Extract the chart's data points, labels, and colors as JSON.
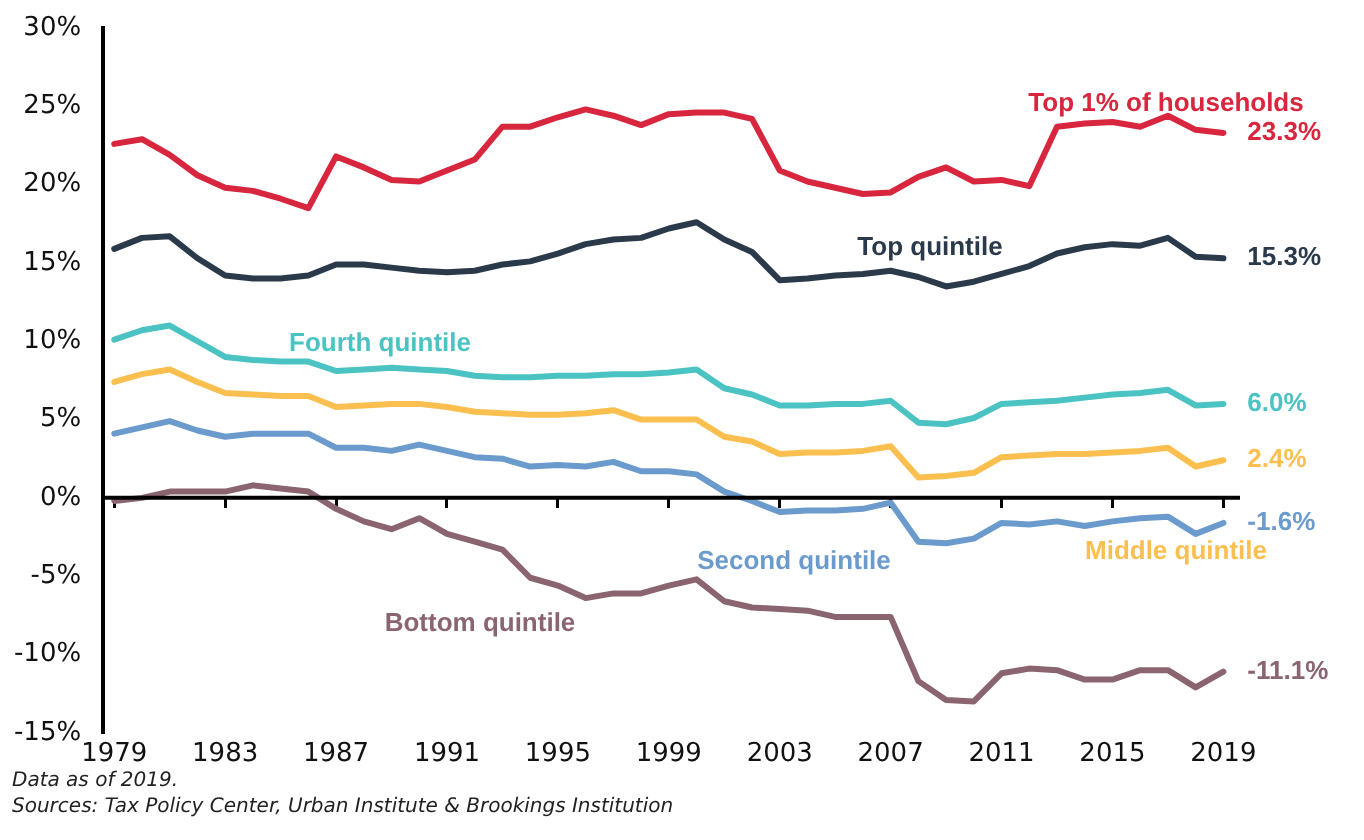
{
  "chart_data": {
    "type": "line",
    "x": [
      1979,
      1980,
      1981,
      1982,
      1983,
      1984,
      1985,
      1986,
      1987,
      1988,
      1989,
      1990,
      1991,
      1992,
      1993,
      1994,
      1995,
      1996,
      1997,
      1998,
      1999,
      2000,
      2001,
      2002,
      2003,
      2004,
      2005,
      2006,
      2007,
      2008,
      2009,
      2010,
      2011,
      2012,
      2013,
      2014,
      2015,
      2016,
      2017,
      2018,
      2019
    ],
    "series": [
      {
        "name": "Top 1% of households",
        "color": "#d7263d",
        "values": [
          22.6,
          22.9,
          21.9,
          20.6,
          19.8,
          19.6,
          19.1,
          18.5,
          21.8,
          21.1,
          20.3,
          20.2,
          20.9,
          21.6,
          23.7,
          23.7,
          24.3,
          24.8,
          24.4,
          23.8,
          24.5,
          24.6,
          24.6,
          24.2,
          20.9,
          20.2,
          19.8,
          19.4,
          19.5,
          20.5,
          21.1,
          20.2,
          20.3,
          19.9,
          23.7,
          23.9,
          24.0,
          23.7,
          24.4,
          23.5,
          23.3
        ],
        "value_labels": [
          null,
          null,
          null,
          null,
          null,
          null,
          null,
          null,
          null,
          null,
          null,
          null,
          null,
          null,
          null,
          null,
          null,
          null,
          null,
          null,
          null,
          null,
          null,
          null,
          null,
          null,
          null,
          null,
          null,
          null,
          null,
          null,
          null,
          null,
          null,
          null,
          null,
          null,
          null,
          null,
          "23.3%"
        ]
      },
      {
        "name": "Top quintile",
        "color": "#2b3a4a",
        "values": [
          15.9,
          16.6,
          16.7,
          15.3,
          14.2,
          14.0,
          14.0,
          14.2,
          14.9,
          14.9,
          14.7,
          14.5,
          14.4,
          14.5,
          14.9,
          15.1,
          15.6,
          16.2,
          16.5,
          16.6,
          17.2,
          17.6,
          16.5,
          15.7,
          13.9,
          14.0,
          14.2,
          14.3,
          14.5,
          14.1,
          13.5,
          13.8,
          14.3,
          14.8,
          15.6,
          16.0,
          16.2,
          16.1,
          16.6,
          15.4,
          15.3
        ],
        "value_labels": [
          null,
          null,
          null,
          null,
          null,
          null,
          null,
          null,
          null,
          null,
          null,
          null,
          null,
          null,
          null,
          null,
          null,
          null,
          null,
          null,
          null,
          null,
          null,
          null,
          null,
          null,
          null,
          null,
          null,
          null,
          null,
          null,
          null,
          null,
          null,
          null,
          null,
          null,
          null,
          null,
          "15.3%"
        ]
      },
      {
        "name": "Fourth quintile",
        "color": "#4cc3c3",
        "values": [
          10.1,
          10.7,
          11.0,
          10.0,
          9.0,
          8.8,
          8.7,
          8.7,
          8.1,
          8.2,
          8.3,
          8.2,
          8.1,
          7.8,
          7.7,
          7.7,
          7.8,
          7.8,
          7.9,
          7.9,
          8.0,
          8.2,
          7.0,
          6.6,
          5.9,
          5.9,
          6.0,
          6.0,
          6.2,
          4.8,
          4.7,
          5.1,
          6.0,
          6.1,
          6.2,
          6.4,
          6.6,
          6.7,
          6.9,
          5.9,
          6.0
        ],
        "value_labels": [
          null,
          null,
          null,
          null,
          null,
          null,
          null,
          null,
          null,
          null,
          null,
          null,
          null,
          null,
          null,
          null,
          null,
          null,
          null,
          null,
          null,
          null,
          null,
          null,
          null,
          null,
          null,
          null,
          null,
          null,
          null,
          null,
          null,
          null,
          null,
          null,
          null,
          null,
          null,
          null,
          "6.0%"
        ]
      },
      {
        "name": "Middle quintile",
        "color": "#fbbf4f",
        "values": [
          7.4,
          7.9,
          8.2,
          7.4,
          6.7,
          6.6,
          6.5,
          6.5,
          5.8,
          5.9,
          6.0,
          6.0,
          5.8,
          5.5,
          5.4,
          5.3,
          5.3,
          5.4,
          5.6,
          5.0,
          5.0,
          5.0,
          3.9,
          3.6,
          2.8,
          2.9,
          2.9,
          3.0,
          3.3,
          1.3,
          1.4,
          1.6,
          2.6,
          2.7,
          2.8,
          2.8,
          2.9,
          3.0,
          3.2,
          2.0,
          2.4
        ],
        "value_labels": [
          null,
          null,
          null,
          null,
          null,
          null,
          null,
          null,
          null,
          null,
          null,
          null,
          null,
          null,
          null,
          null,
          null,
          null,
          null,
          null,
          null,
          null,
          null,
          null,
          null,
          null,
          null,
          null,
          null,
          null,
          null,
          null,
          null,
          null,
          null,
          null,
          null,
          null,
          null,
          null,
          "2.4%"
        ]
      },
      {
        "name": "Second quintile",
        "color": "#6b9bcc",
        "values": [
          4.1,
          4.5,
          4.9,
          4.3,
          3.9,
          4.1,
          4.1,
          4.1,
          3.2,
          3.2,
          3.0,
          3.4,
          3.0,
          2.6,
          2.5,
          2.0,
          2.1,
          2.0,
          2.3,
          1.7,
          1.7,
          1.5,
          0.4,
          -0.2,
          -0.9,
          -0.8,
          -0.8,
          -0.7,
          -0.3,
          -2.8,
          -2.9,
          -2.6,
          -1.6,
          -1.7,
          -1.5,
          -1.8,
          -1.5,
          -1.3,
          -1.2,
          -2.3,
          -1.6
        ],
        "value_labels": [
          null,
          null,
          null,
          null,
          null,
          null,
          null,
          null,
          null,
          null,
          null,
          null,
          null,
          null,
          null,
          null,
          null,
          null,
          null,
          null,
          null,
          null,
          null,
          null,
          null,
          null,
          null,
          null,
          null,
          null,
          null,
          null,
          null,
          null,
          null,
          null,
          null,
          null,
          null,
          null,
          "-1.6%"
        ]
      },
      {
        "name": "Bottom quintile",
        "color": "#8a6570",
        "values": [
          -0.2,
          0.0,
          0.4,
          0.4,
          0.4,
          0.8,
          0.6,
          0.4,
          -0.7,
          -1.5,
          -2.0,
          -1.3,
          -2.3,
          -2.8,
          -3.3,
          -5.1,
          -5.6,
          -6.4,
          -6.1,
          -6.1,
          -5.6,
          -5.2,
          -6.6,
          -7.0,
          -7.1,
          -7.2,
          -7.6,
          -7.6,
          -7.6,
          -11.7,
          -12.9,
          -13.0,
          -11.2,
          -10.9,
          -11.0,
          -11.6,
          -11.6,
          -11.0,
          -11.0,
          -12.1,
          -11.1
        ],
        "value_labels": [
          null,
          null,
          null,
          null,
          null,
          null,
          null,
          null,
          null,
          null,
          null,
          null,
          null,
          null,
          null,
          null,
          null,
          null,
          null,
          null,
          null,
          null,
          null,
          null,
          null,
          null,
          null,
          null,
          null,
          null,
          null,
          null,
          null,
          null,
          null,
          null,
          null,
          null,
          null,
          null,
          "-11.1%"
        ]
      }
    ],
    "xlim": [
      1978.6,
      2019.6
    ],
    "xticks": [
      1979,
      1983,
      1987,
      1991,
      1995,
      1999,
      2003,
      2007,
      2011,
      2015,
      2019
    ],
    "ylim": [
      -15,
      30
    ],
    "yticks": [
      {
        "value": -15,
        "label": "-15%"
      },
      {
        "value": -10,
        "label": "-10%"
      },
      {
        "value": -5,
        "label": "-5%"
      },
      {
        "value": 0,
        "label": "0%"
      },
      {
        "value": 5,
        "label": "5%"
      },
      {
        "value": 10,
        "label": "10%"
      },
      {
        "value": 15,
        "label": "15%"
      },
      {
        "value": 20,
        "label": "20%"
      },
      {
        "value": 25,
        "label": "25%"
      },
      {
        "value": 30,
        "label": "30%"
      }
    ],
    "ref_lines": [
      {
        "axis": "y",
        "value": 0,
        "color": "#000000",
        "line_style": "solid"
      }
    ],
    "grid": false,
    "legend": false,
    "marker": "none",
    "line_style": "solid",
    "annotations": [
      "Data as of 2019.",
      "Sources: Tax Policy Center, Urban Institute & Brookings Institution"
    ]
  }
}
